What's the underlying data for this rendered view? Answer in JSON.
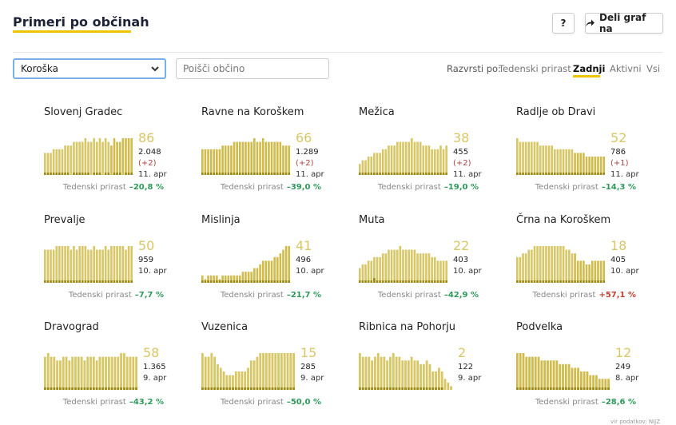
{
  "header": {
    "title": "Primeri po občinah",
    "help_label": "?",
    "share_label": "Deli graf na"
  },
  "filters": {
    "region_value": "Koroška",
    "search_placeholder": "Poišči občino"
  },
  "sort": {
    "label": "Razvrsti po:",
    "options": [
      "Tedenski prirast",
      "Zadnji",
      "Aktivni",
      "Vsi"
    ],
    "active": "Zadnji"
  },
  "growth_label": "Tedenski prirast",
  "colors": {
    "bar": "#d8c766",
    "bar_highlight": "#d0bc4c",
    "bar_dark": "#9c8a12",
    "negative": "#2e9a5a",
    "positive": "#c24030",
    "accent": "#f0c400"
  },
  "municipalities": [
    {
      "name": "Slovenj Gradec",
      "active": "86",
      "total": "2.048",
      "delta": "(+2)",
      "date": "11. apr",
      "growth": "–20,8 %",
      "growth_sign": "neg",
      "bars": [
        6,
        6,
        6,
        7,
        7,
        7,
        7,
        8,
        8,
        8,
        9,
        9,
        9,
        9,
        10,
        9,
        9,
        10,
        9,
        10,
        9,
        10,
        9,
        8,
        10,
        9,
        9,
        10,
        10,
        10,
        10
      ],
      "highlight_from": 23,
      "dark": [
        1,
        1,
        1,
        1,
        1,
        1,
        1,
        1,
        1,
        0,
        1,
        1,
        1,
        1,
        1,
        1,
        0,
        1,
        1,
        1,
        0,
        1,
        1,
        0,
        1,
        1,
        1,
        0,
        1,
        1,
        1
      ]
    },
    {
      "name": "Ravne na Koroškem",
      "active": "66",
      "total": "1.289",
      "delta": "(+2)",
      "date": "11. apr",
      "growth": "–39,0 %",
      "growth_sign": "neg",
      "bars": [
        7,
        7,
        7,
        7,
        7,
        7,
        7,
        8,
        8,
        8,
        8,
        9,
        9,
        9,
        9,
        9,
        9,
        9,
        10,
        9,
        9,
        10,
        9,
        9,
        9,
        9,
        9,
        9,
        8,
        8,
        8
      ],
      "highlight_from": 0,
      "dark": [
        1,
        1,
        1,
        1,
        1,
        1,
        1,
        1,
        1,
        1,
        1,
        1,
        1,
        1,
        1,
        1,
        1,
        1,
        1,
        1,
        1,
        1,
        1,
        1,
        1,
        1,
        1,
        1,
        1,
        1,
        1
      ]
    },
    {
      "name": "Mežica",
      "active": "38",
      "total": "455",
      "delta": "(+2)",
      "date": "11. apr",
      "growth": "–19,0 %",
      "growth_sign": "neg",
      "bars": [
        3,
        4,
        4,
        5,
        5,
        6,
        6,
        6,
        7,
        7,
        8,
        8,
        8,
        9,
        9,
        9,
        9,
        9,
        10,
        9,
        9,
        9,
        8,
        8,
        8,
        7,
        7,
        7,
        8,
        7,
        8
      ],
      "highlight_from": 31,
      "dark": [
        1,
        1,
        1,
        1,
        1,
        1,
        1,
        1,
        1,
        1,
        1,
        1,
        1,
        1,
        1,
        1,
        1,
        1,
        1,
        1,
        1,
        1,
        1,
        1,
        1,
        1,
        1,
        1,
        1,
        1,
        1
      ]
    },
    {
      "name": "Radlje ob Dravi",
      "active": "52",
      "total": "786",
      "delta": "(+1)",
      "date": "11. apr",
      "growth": "–14,3 %",
      "growth_sign": "neg",
      "bars": [
        10,
        9,
        9,
        9,
        9,
        9,
        9,
        9,
        8,
        8,
        8,
        8,
        8,
        7,
        7,
        7,
        7,
        7,
        7,
        7,
        6,
        6,
        6,
        6,
        5,
        5,
        5,
        5,
        5,
        5,
        5
      ],
      "highlight_from": 20,
      "dark": [
        1,
        1,
        1,
        1,
        1,
        1,
        1,
        1,
        1,
        1,
        1,
        1,
        1,
        1,
        1,
        1,
        1,
        1,
        1,
        1,
        1,
        1,
        1,
        1,
        1,
        1,
        1,
        1,
        1,
        1,
        1
      ]
    },
    {
      "name": "Prevalje",
      "active": "50",
      "total": "959",
      "delta": "",
      "date": "10. apr",
      "growth": "–7,7 %",
      "growth_sign": "neg",
      "bars": [
        9,
        9,
        9,
        9,
        10,
        10,
        10,
        10,
        10,
        9,
        10,
        9,
        10,
        10,
        10,
        9,
        9,
        10,
        9,
        9,
        9,
        10,
        9,
        10,
        10,
        10,
        10,
        10,
        9,
        10,
        10
      ],
      "highlight_from": 31,
      "dark": [
        1,
        1,
        1,
        1,
        1,
        1,
        1,
        1,
        1,
        1,
        1,
        1,
        1,
        1,
        1,
        1,
        1,
        1,
        1,
        1,
        1,
        1,
        1,
        1,
        1,
        1,
        1,
        1,
        1,
        1,
        1
      ]
    },
    {
      "name": "Mislinja",
      "active": "41",
      "total": "496",
      "delta": "",
      "date": "10. apr",
      "growth": "–21,7 %",
      "growth_sign": "neg",
      "bars": [
        2,
        1,
        2,
        2,
        2,
        2,
        1,
        2,
        2,
        2,
        2,
        2,
        2,
        2,
        3,
        3,
        3,
        3,
        4,
        4,
        5,
        6,
        6,
        6,
        6,
        7,
        7,
        8,
        9,
        10,
        10
      ],
      "highlight_from": 0,
      "dark": [
        1,
        1,
        1,
        1,
        1,
        1,
        1,
        1,
        1,
        1,
        1,
        1,
        1,
        1,
        1,
        1,
        1,
        1,
        1,
        1,
        1,
        1,
        1,
        1,
        1,
        1,
        1,
        1,
        1,
        1,
        1
      ]
    },
    {
      "name": "Muta",
      "active": "22",
      "total": "403",
      "delta": "",
      "date": "10. apr",
      "growth": "–42,9 %",
      "growth_sign": "neg",
      "bars": [
        4,
        5,
        5,
        6,
        6,
        7,
        7,
        7,
        8,
        8,
        9,
        9,
        9,
        9,
        10,
        9,
        9,
        9,
        9,
        9,
        8,
        8,
        8,
        8,
        8,
        7,
        7,
        6,
        6,
        6,
        6
      ],
      "highlight_from": 31,
      "dark": [
        1,
        1,
        1,
        1,
        1,
        2,
        1,
        1,
        1,
        1,
        1,
        1,
        1,
        1,
        1,
        1,
        1,
        1,
        1,
        1,
        1,
        1,
        1,
        1,
        1,
        1,
        1,
        1,
        1,
        1,
        1
      ]
    },
    {
      "name": "Črna na Koroškem",
      "active": "18",
      "total": "405",
      "delta": "",
      "date": "10. apr",
      "growth": "+57,1 %",
      "growth_sign": "pos",
      "bars": [
        7,
        7,
        8,
        8,
        9,
        9,
        10,
        10,
        10,
        10,
        10,
        10,
        10,
        10,
        10,
        10,
        10,
        9,
        9,
        8,
        8,
        6,
        6,
        6,
        5,
        5,
        6,
        6,
        6,
        6,
        6
      ],
      "highlight_from": 20,
      "dark": [
        1,
        1,
        1,
        1,
        1,
        1,
        1,
        1,
        1,
        1,
        1,
        1,
        1,
        1,
        1,
        1,
        1,
        1,
        1,
        1,
        1,
        1,
        1,
        1,
        1,
        1,
        1,
        1,
        1,
        1,
        1
      ]
    },
    {
      "name": "Dravograd",
      "active": "58",
      "total": "1.365",
      "delta": "",
      "date": "9. apr",
      "growth": "–43,2 %",
      "growth_sign": "neg",
      "bars": [
        9,
        10,
        9,
        9,
        8,
        8,
        9,
        9,
        8,
        9,
        9,
        9,
        9,
        8,
        9,
        9,
        9,
        8,
        9,
        9,
        9,
        9,
        9,
        9,
        9,
        10,
        10,
        9,
        9,
        9,
        9
      ],
      "highlight_from": 31,
      "dark": [
        1,
        1,
        1,
        1,
        1,
        1,
        1,
        1,
        1,
        1,
        1,
        1,
        1,
        1,
        1,
        1,
        1,
        1,
        1,
        1,
        1,
        1,
        1,
        1,
        1,
        1,
        1,
        1,
        1,
        1,
        1
      ]
    },
    {
      "name": "Vuzenica",
      "active": "15",
      "total": "285",
      "delta": "",
      "date": "9. apr",
      "growth": "–50,0 %",
      "growth_sign": "neg",
      "bars": [
        10,
        9,
        9,
        10,
        9,
        7,
        6,
        5,
        4,
        4,
        4,
        5,
        5,
        5,
        5,
        6,
        8,
        8,
        9,
        10,
        10,
        10,
        10,
        10,
        10,
        10,
        10,
        10,
        10,
        10,
        10
      ],
      "highlight_from": 31,
      "dark": [
        1,
        1,
        1,
        1,
        1,
        1,
        1,
        1,
        1,
        1,
        1,
        1,
        1,
        1,
        1,
        1,
        1,
        1,
        1,
        1,
        1,
        1,
        1,
        1,
        1,
        1,
        1,
        1,
        1,
        1,
        1
      ]
    },
    {
      "name": "Ribnica na Pohorju",
      "active": "2",
      "total": "122",
      "delta": "",
      "date": "9. apr",
      "growth": "",
      "growth_sign": "neg",
      "bars": [
        10,
        9,
        9,
        9,
        8,
        9,
        10,
        9,
        9,
        8,
        9,
        10,
        9,
        9,
        8,
        8,
        8,
        9,
        8,
        8,
        7,
        7,
        8,
        7,
        5,
        5,
        6,
        5,
        3,
        2,
        1
      ],
      "highlight_from": 31,
      "dark": [
        1,
        1,
        1,
        1,
        1,
        1,
        1,
        1,
        1,
        1,
        1,
        1,
        1,
        1,
        1,
        1,
        1,
        1,
        1,
        1,
        1,
        1,
        1,
        1,
        1,
        1,
        1,
        1,
        0,
        0,
        0
      ]
    },
    {
      "name": "Podvelka",
      "active": "12",
      "total": "249",
      "delta": "",
      "date": "8. apr",
      "growth": "–28,6 %",
      "growth_sign": "neg",
      "bars": [
        10,
        10,
        10,
        9,
        9,
        9,
        9,
        9,
        8,
        8,
        8,
        8,
        8,
        8,
        7,
        7,
        7,
        7,
        6,
        6,
        6,
        5,
        5,
        5,
        4,
        4,
        4,
        3,
        3,
        3,
        3
      ],
      "highlight_from": 0,
      "dark": [
        1,
        1,
        1,
        1,
        1,
        1,
        1,
        1,
        1,
        1,
        1,
        1,
        1,
        1,
        1,
        1,
        1,
        1,
        1,
        1,
        1,
        1,
        1,
        1,
        1,
        1,
        1,
        1,
        1,
        1,
        1
      ]
    }
  ],
  "source": "vir podatkov: NIJZ"
}
